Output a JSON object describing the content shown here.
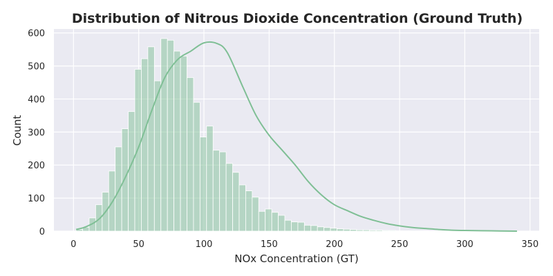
{
  "chart_data": {
    "type": "histogram",
    "title": "Distribution of Nitrous Dioxide Concentration (Ground Truth)",
    "xlabel": "NOx Concentration (GT)",
    "ylabel": "Count",
    "xlim": [
      -15,
      357
    ],
    "ylim": [
      0,
      612
    ],
    "x_ticks": [
      0,
      50,
      100,
      150,
      200,
      250,
      300,
      350
    ],
    "y_ticks": [
      0,
      100,
      200,
      300,
      400,
      500,
      600
    ],
    "bin_start": 2,
    "bin_width": 5,
    "counts": [
      5,
      12,
      40,
      80,
      118,
      182,
      255,
      310,
      362,
      490,
      522,
      558,
      455,
      583,
      578,
      545,
      530,
      465,
      390,
      285,
      318,
      245,
      240,
      205,
      178,
      140,
      122,
      103,
      60,
      67,
      57,
      48,
      33,
      28,
      27,
      18,
      17,
      13,
      11,
      9,
      7,
      6,
      5,
      4,
      4,
      3,
      3,
      2,
      2,
      1,
      1,
      1,
      1,
      1,
      0,
      1,
      0,
      1
    ],
    "kde": [
      [
        2,
        5
      ],
      [
        10,
        14
      ],
      [
        20,
        38
      ],
      [
        30,
        90
      ],
      [
        40,
        165
      ],
      [
        50,
        255
      ],
      [
        60,
        365
      ],
      [
        70,
        465
      ],
      [
        80,
        520
      ],
      [
        90,
        545
      ],
      [
        100,
        570
      ],
      [
        110,
        568
      ],
      [
        118,
        540
      ],
      [
        130,
        435
      ],
      [
        140,
        350
      ],
      [
        150,
        290
      ],
      [
        160,
        245
      ],
      [
        170,
        200
      ],
      [
        180,
        150
      ],
      [
        190,
        110
      ],
      [
        200,
        80
      ],
      [
        210,
        62
      ],
      [
        220,
        45
      ],
      [
        230,
        33
      ],
      [
        240,
        23
      ],
      [
        250,
        16
      ],
      [
        260,
        11
      ],
      [
        270,
        8
      ],
      [
        280,
        5
      ],
      [
        290,
        3
      ],
      [
        300,
        2
      ],
      [
        320,
        1
      ],
      [
        340,
        0
      ]
    ],
    "bar_color": "#7fbf95",
    "bar_opacity": 0.5,
    "kde_color": "#7fbf95",
    "background_color": "#eaeaf2",
    "grid": true,
    "legend": "none"
  }
}
